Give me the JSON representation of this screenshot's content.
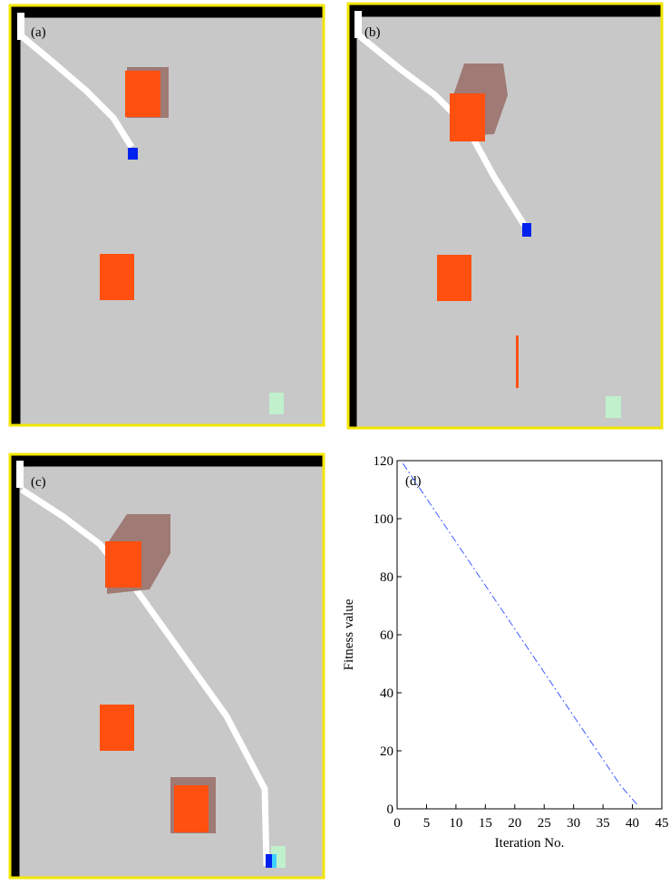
{
  "panels": [
    "(a)",
    "(b)",
    "(c)"
  ],
  "chart_data": {
    "type": "line",
    "label": "(d)",
    "x_label": "Iteration No.",
    "y_label": "Fitness value",
    "x": [
      1,
      5,
      10,
      15,
      20,
      25,
      30,
      35,
      38,
      41
    ],
    "series": [
      {
        "color": "#3f5cff",
        "values": [
          119,
          107,
          92,
          77,
          62,
          47,
          32,
          17,
          8,
          1
        ]
      }
    ],
    "xlim": [
      0,
      45
    ],
    "ylim": [
      0,
      120
    ],
    "xticks": [
      0,
      5,
      10,
      15,
      20,
      25,
      30,
      35,
      40,
      45
    ],
    "yticks": [
      0,
      20,
      40,
      60,
      80,
      100,
      120
    ]
  }
}
